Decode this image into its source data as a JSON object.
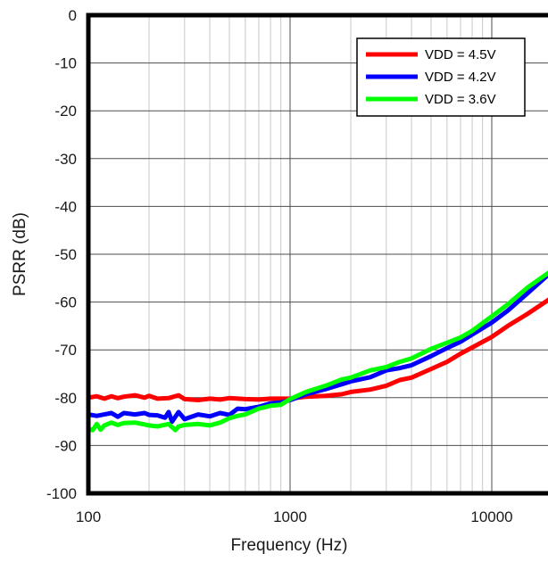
{
  "chart_data": {
    "type": "line",
    "title": "",
    "xlabel": "Frequency (Hz)",
    "ylabel": "PSRR (dB)",
    "x_scale": "log",
    "xlim": [
      100,
      20000
    ],
    "ylim": [
      -100,
      0
    ],
    "x_ticks": [
      100,
      1000,
      10000
    ],
    "x_tick_labels": [
      "100",
      "1000",
      "10000"
    ],
    "y_ticks": [
      0,
      -10,
      -20,
      -30,
      -40,
      -50,
      -60,
      -70,
      -80,
      -90,
      -100
    ],
    "y_tick_labels": [
      "0",
      "-10",
      "-20",
      "-30",
      "-40",
      "-50",
      "-60",
      "-70",
      "-80",
      "-90",
      "-100"
    ],
    "grid": true,
    "legend_position": "top-right",
    "series": [
      {
        "name": "VDD = 4.5V",
        "color": "#ff0000",
        "x": [
          100,
          110,
          120,
          130,
          140,
          150,
          170,
          190,
          200,
          220,
          250,
          280,
          300,
          350,
          400,
          450,
          500,
          600,
          700,
          800,
          900,
          1000,
          1200,
          1500,
          1800,
          2000,
          2500,
          3000,
          3500,
          4000,
          5000,
          6000,
          7000,
          8000,
          10000,
          12000,
          15000,
          20000
        ],
        "y": [
          -80.0,
          -79.7,
          -80.2,
          -79.7,
          -80.1,
          -79.8,
          -79.5,
          -80.0,
          -79.6,
          -80.2,
          -80.1,
          -79.5,
          -80.3,
          -80.5,
          -80.2,
          -80.4,
          -80.1,
          -80.3,
          -80.4,
          -80.2,
          -80.2,
          -80.2,
          -79.8,
          -79.6,
          -79.3,
          -78.8,
          -78.3,
          -77.5,
          -76.3,
          -75.8,
          -74.0,
          -72.5,
          -70.8,
          -69.5,
          -67.3,
          -65.0,
          -62.5,
          -59.0
        ]
      },
      {
        "name": "VDD = 4.2V",
        "color": "#0000ff",
        "x": [
          100,
          110,
          120,
          130,
          140,
          150,
          170,
          190,
          200,
          220,
          240,
          250,
          260,
          280,
          300,
          350,
          400,
          450,
          500,
          550,
          600,
          700,
          800,
          900,
          1000,
          1200,
          1500,
          1800,
          2000,
          2500,
          3000,
          3500,
          4000,
          5000,
          6000,
          7000,
          8000,
          10000,
          12000,
          15000,
          20000
        ],
        "y": [
          -83.5,
          -83.8,
          -83.5,
          -83.2,
          -84.0,
          -83.2,
          -83.5,
          -83.2,
          -83.6,
          -83.7,
          -84.2,
          -83.0,
          -85.0,
          -83.0,
          -84.5,
          -83.5,
          -83.9,
          -83.2,
          -83.6,
          -82.3,
          -82.4,
          -81.9,
          -81.2,
          -81.0,
          -80.5,
          -79.3,
          -78.2,
          -77.2,
          -76.6,
          -75.7,
          -74.3,
          -73.8,
          -73.2,
          -71.3,
          -69.6,
          -68.3,
          -66.8,
          -64.3,
          -61.8,
          -58.2,
          -53.5
        ]
      },
      {
        "name": "VDD = 3.6V",
        "color": "#00ff00",
        "x": [
          100,
          105,
          110,
          115,
          120,
          130,
          140,
          150,
          170,
          190,
          200,
          220,
          250,
          270,
          280,
          300,
          350,
          400,
          450,
          500,
          550,
          600,
          700,
          800,
          900,
          1000,
          1200,
          1500,
          1800,
          2000,
          2500,
          3000,
          3500,
          4000,
          5000,
          6000,
          7000,
          8000,
          10000,
          12000,
          15000,
          20000
        ],
        "y": [
          -86.5,
          -86.8,
          -85.5,
          -86.7,
          -85.8,
          -85.2,
          -85.7,
          -85.3,
          -85.2,
          -85.6,
          -85.8,
          -86.0,
          -85.5,
          -86.8,
          -86.0,
          -85.7,
          -85.5,
          -85.8,
          -85.2,
          -84.3,
          -83.8,
          -83.5,
          -82.3,
          -81.7,
          -81.5,
          -80.3,
          -78.8,
          -77.5,
          -76.2,
          -75.8,
          -74.3,
          -73.6,
          -72.5,
          -71.8,
          -69.8,
          -68.5,
          -67.4,
          -66.0,
          -63.0,
          -60.5,
          -57.0,
          -53.3
        ]
      }
    ]
  }
}
